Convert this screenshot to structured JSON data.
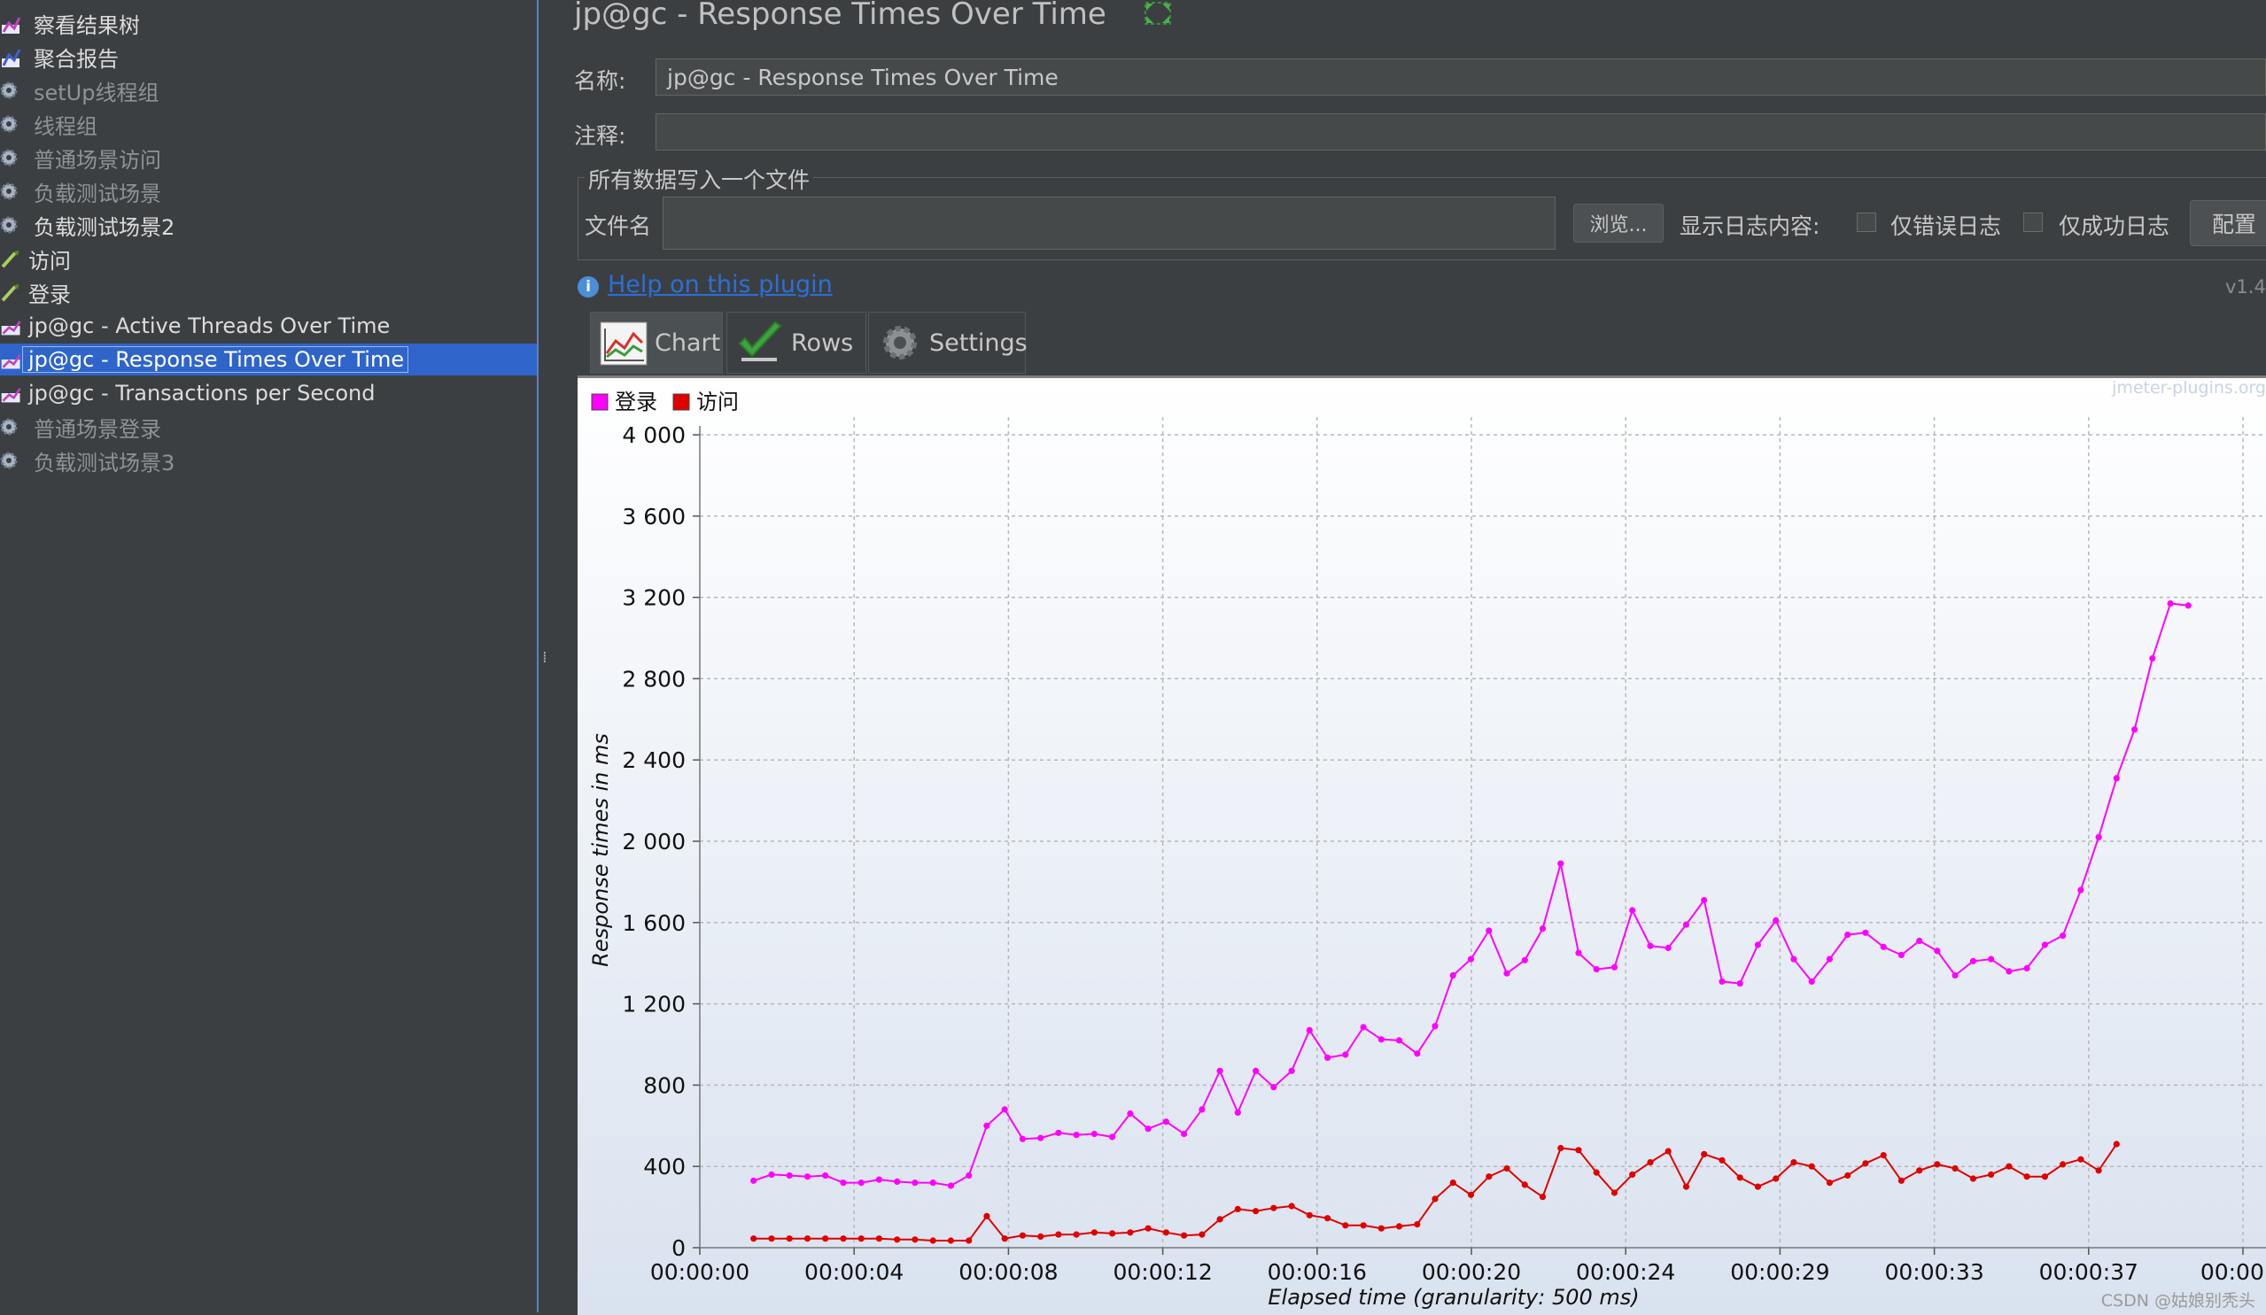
{
  "tree": {
    "items": [
      {
        "label": "察看结果树",
        "icon": "results-tree-icon",
        "state": "active",
        "indent": 0
      },
      {
        "label": "聚合报告",
        "icon": "aggregate-report-icon",
        "state": "active",
        "indent": 0
      },
      {
        "label": "setUp线程组",
        "icon": "gear-icon",
        "state": "disabled",
        "indent": 0
      },
      {
        "label": "线程组",
        "icon": "gear-icon",
        "state": "disabled",
        "indent": 0
      },
      {
        "label": "普通场景访问",
        "icon": "gear-icon",
        "state": "disabled",
        "indent": 0
      },
      {
        "label": "负载测试场景",
        "icon": "gear-icon",
        "state": "disabled",
        "indent": 0
      },
      {
        "label": "负载测试场景2",
        "icon": "gear-icon",
        "state": "active",
        "indent": 0
      },
      {
        "label": "访问",
        "icon": "pipette-icon",
        "state": "active",
        "indent": 1
      },
      {
        "label": "登录",
        "icon": "pipette-icon",
        "state": "active",
        "indent": 1
      },
      {
        "label": "jp@gc - Active Threads Over Time",
        "icon": "graph-icon",
        "state": "active",
        "indent": 1
      },
      {
        "label": "jp@gc - Response Times Over Time",
        "icon": "graph-icon",
        "state": "selected",
        "indent": 1
      },
      {
        "label": "jp@gc - Transactions per Second",
        "icon": "graph-icon",
        "state": "active",
        "indent": 1
      },
      {
        "label": "普通场景登录",
        "icon": "gear-icon",
        "state": "disabled",
        "indent": 0
      },
      {
        "label": "负载测试场景3",
        "icon": "gear-icon",
        "state": "disabled",
        "indent": 0
      }
    ]
  },
  "header": {
    "title": "jp@gc - Response Times Over Time",
    "expand_icon": "expand-arrows-icon"
  },
  "form": {
    "name_label": "名称:",
    "name_value": "jp@gc - Response Times Over Time",
    "comment_label": "注释:",
    "comment_value": "",
    "file_group_title": "所有数据写入一个文件",
    "filename_label": "文件名",
    "filename_value": "",
    "browse_button": "浏览...",
    "log_label": "显示日志内容:",
    "errors_only": "仅错误日志",
    "success_only": "仅成功日志",
    "config_button": "配置"
  },
  "help": {
    "link": "Help on this plugin",
    "version": "v1.4"
  },
  "tabs": [
    {
      "label": "Chart",
      "icon": "chart-icon",
      "selected": true
    },
    {
      "label": "Rows",
      "icon": "checkmark-icon",
      "selected": false
    },
    {
      "label": "Settings",
      "icon": "gear-icon",
      "selected": false
    }
  ],
  "chart_data": {
    "type": "line",
    "plugin_mark": "jmeter-plugins.org",
    "xlabel": "Elapsed time (granularity: 500 ms)",
    "ylabel": "Response times in ms",
    "ylim": [
      0,
      4000
    ],
    "yticks": [
      "0",
      "400",
      "800",
      "1 200",
      "1 600",
      "2 000",
      "2 400",
      "2 800",
      "3 200",
      "3 600",
      "4 000"
    ],
    "xticks": [
      "00:00:00",
      "00:00:04",
      "00:00:08",
      "00:00:12",
      "00:00:16",
      "00:00:20",
      "00:00:24",
      "00:00:29",
      "00:00:33",
      "00:00:37",
      "00:00:4"
    ],
    "legend_position": "top-left",
    "grid": true,
    "series": [
      {
        "name": "登录",
        "color": "#ff00ff",
        "x_start_s": 1.5,
        "step_s": 0.5,
        "values": [
          330,
          360,
          355,
          350,
          355,
          320,
          320,
          335,
          325,
          320,
          320,
          305,
          355,
          600,
          680,
          535,
          540,
          565,
          555,
          560,
          545,
          660,
          585,
          620,
          560,
          680,
          870,
          665,
          870,
          790,
          870,
          1070,
          935,
          950,
          1085,
          1025,
          1020,
          955,
          1090,
          1340,
          1420,
          1560,
          1350,
          1415,
          1570,
          1890,
          1450,
          1370,
          1380,
          1660,
          1485,
          1475,
          1590,
          1710,
          1310,
          1300,
          1490,
          1610,
          1420,
          1310,
          1420,
          1540,
          1550,
          1480,
          1440,
          1510,
          1460,
          1340,
          1410,
          1420,
          1360,
          1375,
          1490,
          1535,
          1760,
          2020,
          2310,
          2550,
          2900,
          3170,
          3160
        ]
      },
      {
        "name": "访问",
        "color": "#e00000",
        "x_start_s": 1.5,
        "step_s": 0.5,
        "values": [
          45,
          45,
          45,
          45,
          45,
          45,
          45,
          45,
          40,
          40,
          35,
          35,
          35,
          155,
          45,
          60,
          55,
          65,
          65,
          75,
          70,
          75,
          95,
          75,
          60,
          65,
          140,
          190,
          180,
          195,
          205,
          160,
          145,
          110,
          110,
          95,
          105,
          115,
          240,
          320,
          260,
          350,
          390,
          310,
          250,
          490,
          480,
          370,
          270,
          360,
          420,
          475,
          300,
          460,
          430,
          345,
          300,
          340,
          420,
          400,
          320,
          355,
          415,
          455,
          330,
          380,
          410,
          390,
          340,
          360,
          400,
          350,
          350,
          410,
          435,
          380,
          510
        ]
      }
    ]
  },
  "footer": {
    "watermark": "CSDN @姑娘别秃头"
  }
}
